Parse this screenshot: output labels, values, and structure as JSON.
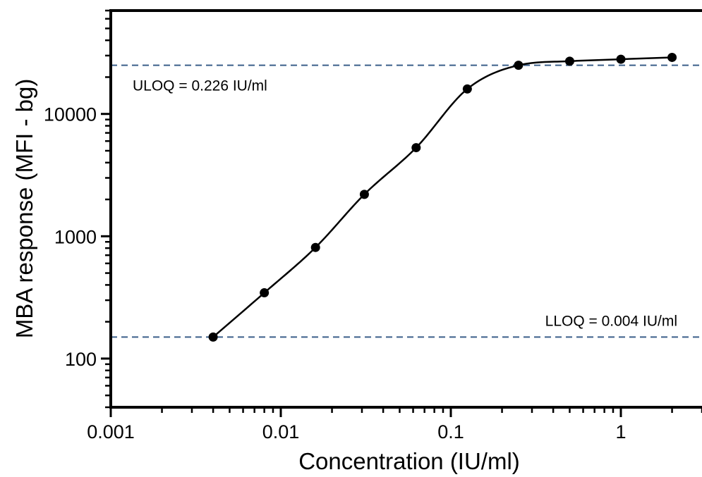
{
  "chart_data": {
    "type": "scatter",
    "title": "",
    "xlabel": "Concentration (IU/ml)",
    "ylabel": "MBA response (MFI - bg)",
    "xscale": "log",
    "yscale": "log",
    "xlim": [
      0.001,
      3
    ],
    "ylim": [
      40,
      70000
    ],
    "x_ticks": [
      0.001,
      0.01,
      0.1,
      1
    ],
    "x_tick_labels": [
      "0.001",
      "0.01",
      "0.1",
      "1"
    ],
    "y_ticks": [
      100,
      1000,
      10000
    ],
    "y_tick_labels": [
      "100",
      "1000",
      "10000"
    ],
    "grid": false,
    "series": [
      {
        "type": "scatter",
        "color": "#000000",
        "x": [
          0.004,
          0.008,
          0.016,
          0.031,
          0.0625,
          0.125,
          0.25,
          0.5,
          1.0,
          2.0
        ],
        "y": [
          150,
          345,
          810,
          2200,
          5300,
          16000,
          25000,
          27000,
          28000,
          29000
        ]
      }
    ],
    "fit_curve": {
      "type": "line",
      "color": "#000000",
      "x_range": [
        0.004,
        2.0
      ]
    },
    "reference_lines": [
      {
        "orientation": "horizontal",
        "y": 25000,
        "style": "dashed",
        "color": "#3b5f8a",
        "label": "ULOQ = 0.226 IU/ml"
      },
      {
        "orientation": "horizontal",
        "y": 150,
        "style": "dashed",
        "color": "#3b5f8a",
        "label": "LLOQ = 0.004 IU/ml"
      }
    ]
  }
}
